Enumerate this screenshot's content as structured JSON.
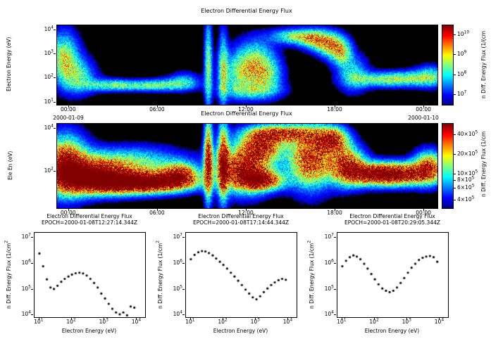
{
  "window": {
    "background": "#ffffff",
    "text_color": "#000000",
    "plot_background": "#000000"
  },
  "chart_data": [
    {
      "panel": "top-spectrogram",
      "type": "heatmap",
      "title": "Electron Differential Energy Flux",
      "ylabel": "Electron Energy (eV)",
      "yticks": [
        "10^1",
        "10^2",
        "10^3",
        "10^4"
      ],
      "ytick_logs": [
        1,
        2,
        3,
        4
      ],
      "xticks": [
        "00:00",
        "06:00",
        "12:00",
        "18:00",
        "00:00"
      ],
      "xtick_hours": [
        0,
        6,
        12,
        18,
        24
      ],
      "xdate_left": "2000-01-09",
      "xdate_right": "2000-01-10",
      "time_range_hours": [
        -0.8,
        24.9
      ],
      "energy_log_range": [
        0.9,
        4.2
      ],
      "colorbar": {
        "label": "n Diff. Energy Flux (1/(cm^",
        "ticks": [
          "10^10",
          "10^9",
          "10^8",
          "10^7"
        ],
        "tick_logs": [
          10,
          9,
          8,
          7
        ],
        "log_range": [
          6.5,
          10.5
        ]
      },
      "blobs_format": [
        "t_hours",
        "log10_energy_eV",
        "sigma_t",
        "sigma_logE",
        "relative_intensity"
      ],
      "blobs": [
        [
          -0.4,
          2.9,
          0.7,
          0.7,
          0.55
        ],
        [
          0.6,
          2.1,
          0.8,
          0.5,
          0.4
        ],
        [
          2.5,
          1.75,
          1.2,
          0.18,
          0.3
        ],
        [
          4.5,
          1.7,
          1.6,
          0.15,
          0.32
        ],
        [
          6.5,
          1.75,
          1.2,
          0.18,
          0.3
        ],
        [
          7.8,
          1.9,
          0.7,
          0.25,
          0.28
        ],
        [
          9.4,
          2.6,
          0.18,
          1.3,
          0.5
        ],
        [
          10.4,
          2.4,
          0.22,
          1.1,
          0.45
        ],
        [
          11.6,
          2.2,
          0.9,
          0.6,
          0.42
        ],
        [
          12.6,
          2.8,
          0.9,
          0.6,
          0.4
        ],
        [
          13.4,
          2.1,
          0.7,
          0.5,
          0.38
        ],
        [
          12.3,
          1.5,
          1.4,
          0.25,
          0.3
        ],
        [
          15.3,
          3.75,
          1.1,
          0.22,
          0.5
        ],
        [
          16.6,
          3.6,
          0.7,
          0.3,
          0.45
        ],
        [
          17.6,
          3.4,
          0.6,
          0.35,
          0.55
        ],
        [
          18.4,
          3.1,
          0.5,
          0.4,
          0.5
        ],
        [
          19.2,
          2.2,
          0.7,
          0.5,
          0.35
        ],
        [
          20.8,
          1.95,
          1.3,
          0.2,
          0.35
        ],
        [
          22.8,
          2.0,
          1.3,
          0.22,
          0.4
        ],
        [
          24.4,
          2.1,
          0.7,
          0.3,
          0.38
        ]
      ]
    },
    {
      "panel": "middle-spectrogram",
      "type": "heatmap",
      "title": "Electron Differential Energy Flux",
      "ylabel": "Ele En (eV)",
      "yticks": [
        "10^2",
        "10^4"
      ],
      "ytick_logs": [
        2,
        4
      ],
      "xticks": [
        "00:00",
        "06:00",
        "12:00",
        "18:00",
        "00:00"
      ],
      "xtick_hours": [
        0,
        6,
        12,
        18,
        24
      ],
      "time_range_hours": [
        -0.8,
        24.9
      ],
      "energy_log_range": [
        0.3,
        4.23
      ],
      "colorbar": {
        "label": "n Diff. Energy Flux (1/cm^",
        "ticks": [
          "40×10^5",
          "20×10^5",
          "10×10^5",
          "8×10^5",
          "6×10^5",
          "4×10^5"
        ],
        "tick_logs": [
          6.602,
          6.301,
          6.0,
          5.903,
          5.778,
          5.602
        ],
        "log_range": [
          5.48,
          6.78
        ]
      },
      "blobs_format": [
        "t_hours",
        "log10_energy_eV",
        "sigma_t",
        "sigma_logE",
        "relative_intensity"
      ],
      "blobs": [
        [
          -0.3,
          2.3,
          1.0,
          0.9,
          1.0
        ],
        [
          1.5,
          1.8,
          1.5,
          0.5,
          1.0
        ],
        [
          3.5,
          1.5,
          2.0,
          0.35,
          0.95
        ],
        [
          6.0,
          1.5,
          1.8,
          0.3,
          0.9
        ],
        [
          4.0,
          2.4,
          2.5,
          0.5,
          0.5
        ],
        [
          7.5,
          1.9,
          0.8,
          0.35,
          0.8
        ],
        [
          9.4,
          2.6,
          0.2,
          1.3,
          0.95
        ],
        [
          10.4,
          2.5,
          0.25,
          1.2,
          0.9
        ],
        [
          11.8,
          2.1,
          1.2,
          0.7,
          1.0
        ],
        [
          13.0,
          3.2,
          1.0,
          0.5,
          0.85
        ],
        [
          14.5,
          3.8,
          1.6,
          0.28,
          0.75
        ],
        [
          13.0,
          1.6,
          1.0,
          0.3,
          0.9
        ],
        [
          16.3,
          2.6,
          1.0,
          0.9,
          0.95
        ],
        [
          17.8,
          3.5,
          0.7,
          0.4,
          0.85
        ],
        [
          18.8,
          2.3,
          0.8,
          0.6,
          0.9
        ],
        [
          20.5,
          1.9,
          1.2,
          0.35,
          0.95
        ],
        [
          22.5,
          1.9,
          1.2,
          0.35,
          0.95
        ],
        [
          24.3,
          2.2,
          0.7,
          0.5,
          0.85
        ]
      ]
    },
    {
      "panel": "flux-profile-1",
      "type": "scatter",
      "title": "Electron Differential Energy Flux",
      "subtitle": "EPOCH=2000-01-08T12:27:14.344Z",
      "xlabel": "Electron Energy (eV)",
      "ylabel": "n Diff. Energy Flux (1/cm^2",
      "xticks": [
        "10^1",
        "10^2",
        "10^3",
        "10^4"
      ],
      "xtick_logs": [
        1,
        2,
        3,
        4
      ],
      "yticks": [
        "10^4",
        "10^5",
        "10^6",
        "10^7"
      ],
      "ytick_logs": [
        4,
        5,
        6,
        7
      ],
      "xlim_log": [
        0.85,
        4.25
      ],
      "ylim_log": [
        3.93,
        7.2
      ],
      "x": [
        10,
        13,
        17,
        22,
        28,
        36,
        47,
        60,
        78,
        100,
        130,
        170,
        220,
        285,
        370,
        480,
        620,
        800,
        1040,
        1350,
        1750,
        2270,
        2950,
        3800,
        4950,
        6400,
        8300
      ],
      "y": [
        2500000.0,
        800000.0,
        250000.0,
        120000.0,
        105000.0,
        140000.0,
        200000.0,
        260000.0,
        320000.0,
        380000.0,
        430000.0,
        450000.0,
        420000.0,
        350000.0,
        260000.0,
        180000.0,
        120000.0,
        70000.0,
        45000.0,
        28000.0,
        18000.0,
        13000.0,
        11000.0,
        13000.0,
        10000.0,
        22000.0,
        20000.0
      ]
    },
    {
      "panel": "flux-profile-2",
      "type": "scatter",
      "title": "Electron Differential Energy Flux",
      "subtitle": "EPOCH=2000-01-08T17:14:44.344Z",
      "xlabel": "Electron Energy (eV)",
      "ylabel": "n Diff. Energy Flux (1/cm^2",
      "xticks": [
        "10^1",
        "10^2",
        "10^3",
        "10^4"
      ],
      "xtick_logs": [
        1,
        2,
        3,
        4
      ],
      "yticks": [
        "10^4",
        "10^5",
        "10^6",
        "10^7"
      ],
      "ytick_logs": [
        4,
        5,
        6,
        7
      ],
      "xlim_log": [
        0.85,
        4.25
      ],
      "ylim_log": [
        3.93,
        7.2
      ],
      "x": [
        10,
        13,
        17,
        22,
        28,
        36,
        47,
        60,
        78,
        100,
        130,
        170,
        220,
        285,
        370,
        480,
        620,
        800,
        1040,
        1350,
        1750,
        2270,
        2950,
        3800,
        4950,
        6400,
        8300
      ],
      "y": [
        1500000.0,
        2200000.0,
        2800000.0,
        3100000.0,
        3000000.0,
        2600000.0,
        2100000.0,
        1600000.0,
        1200000.0,
        900000.0,
        650000.0,
        450000.0,
        320000.0,
        220000.0,
        150000.0,
        100000.0,
        70000.0,
        50000.0,
        42000.0,
        55000.0,
        80000.0,
        110000.0,
        150000.0,
        190000.0,
        230000.0,
        260000.0,
        240000.0
      ]
    },
    {
      "panel": "flux-profile-3",
      "type": "scatter",
      "title": "Electron Differential Energy Flux",
      "subtitle": "EPOCH=2000-01-08T20:29:05.344Z",
      "xlabel": "Electron Energy (eV)",
      "ylabel": "n Diff. Energy Flux (1/cm^2",
      "xticks": [
        "10^1",
        "10^2",
        "10^3",
        "10^4"
      ],
      "xtick_logs": [
        1,
        2,
        3,
        4
      ],
      "yticks": [
        "10^4",
        "10^5",
        "10^6",
        "10^7"
      ],
      "ytick_logs": [
        4,
        5,
        6,
        7
      ],
      "xlim_log": [
        0.85,
        4.25
      ],
      "ylim_log": [
        3.93,
        7.2
      ],
      "x": [
        10,
        13,
        17,
        22,
        28,
        36,
        47,
        60,
        78,
        100,
        130,
        170,
        220,
        285,
        370,
        480,
        620,
        800,
        1040,
        1350,
        1750,
        2270,
        2950,
        3800,
        4950,
        6400,
        8300
      ],
      "y": [
        800000.0,
        1300000.0,
        1800000.0,
        2100000.0,
        1900000.0,
        1500000.0,
        1000000.0,
        650000.0,
        400000.0,
        250000.0,
        160000.0,
        110000.0,
        90000.0,
        80000.0,
        90000.0,
        120000.0,
        180000.0,
        280000.0,
        450000.0,
        700000.0,
        1000000.0,
        1400000.0,
        1700000.0,
        1900000.0,
        2000000.0,
        1800000.0,
        1200000.0
      ]
    }
  ]
}
